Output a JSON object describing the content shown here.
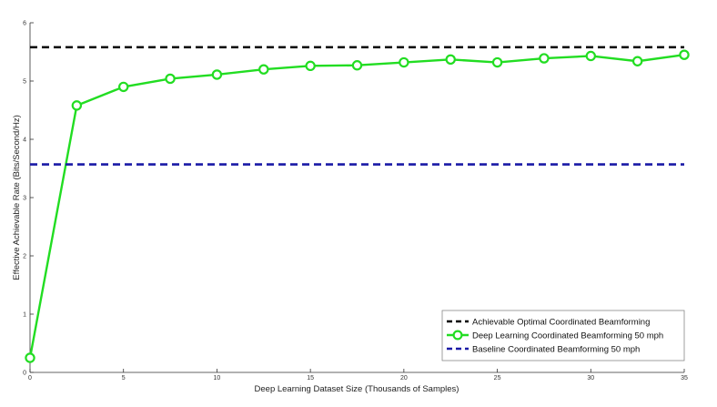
{
  "chart_data": {
    "type": "line",
    "xlabel": "Deep Learning Dataset Size (Thousands of Samples)",
    "ylabel": "Effective Achievable Rate (Bits/Second/Hz)",
    "xlim": [
      0,
      35
    ],
    "ylim": [
      0,
      6
    ],
    "x_ticks": [
      0,
      5,
      10,
      15,
      20,
      25,
      30,
      35
    ],
    "y_ticks": [
      0,
      1,
      2,
      3,
      4,
      5,
      6
    ],
    "grid": false,
    "legend_position": "bottom-right",
    "series": [
      {
        "name": "Achievable Optimal Coordinated Beamforming",
        "style": "dashed",
        "color": "#000000",
        "x": [
          0,
          35
        ],
        "y": [
          5.58,
          5.58
        ]
      },
      {
        "name": "Deep Learning Coordinated Beamforming 50 mph",
        "style": "solid-circle-markers",
        "color": "#22dd22",
        "x": [
          0,
          2.5,
          5,
          7.5,
          10,
          12.5,
          15,
          17.5,
          20,
          22.5,
          25,
          27.5,
          30,
          32.5,
          35
        ],
        "y": [
          0.25,
          4.58,
          4.9,
          5.04,
          5.11,
          5.2,
          5.26,
          5.27,
          5.32,
          5.37,
          5.32,
          5.39,
          5.43,
          5.34,
          5.45
        ]
      },
      {
        "name": "Baseline Coordinated Beamforming 50 mph",
        "style": "dashed",
        "color": "#1a1aa6",
        "x": [
          0,
          35
        ],
        "y": [
          3.57,
          3.57
        ]
      }
    ]
  }
}
